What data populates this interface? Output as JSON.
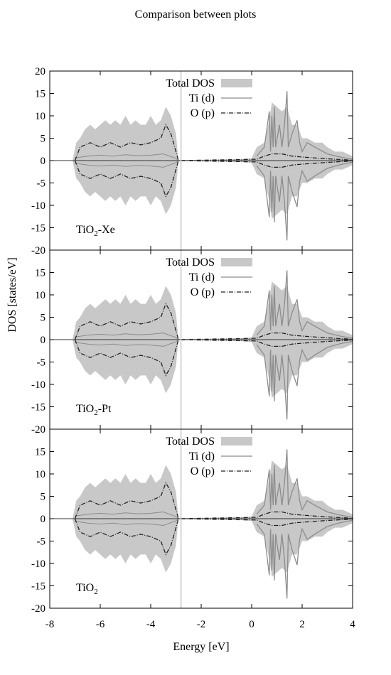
{
  "title": "Comparison between plots",
  "chart_data": {
    "type": "area",
    "xlabel": "Energy [eV]",
    "ylabel": "DOS [states/eV]",
    "xlim": [
      -8,
      4
    ],
    "xticks": [
      "-8",
      "-6",
      "-4",
      "-2",
      "0",
      "2",
      "4"
    ],
    "vertical_line_x": -2.8,
    "legend": [
      "Total DOS",
      "Ti (d)",
      "O (p)"
    ],
    "legend_placement": "top-center",
    "colors": {
      "total": "#c8c8c8",
      "ti": "#8c8c8c",
      "o": "#222222",
      "vline": "#c8c8c8"
    },
    "panels": [
      {
        "label": "TiO",
        "sub": "2",
        "suffix": "-Xe",
        "ylim": [
          -20,
          20
        ],
        "yticks": [
          "20",
          "15",
          "10",
          "5",
          "0",
          "-5",
          "-10",
          "-15",
          "-20"
        ]
      },
      {
        "label": "TiO",
        "sub": "2",
        "suffix": "-Pt",
        "ylim": [
          -20,
          20
        ],
        "yticks": [
          "15",
          "10",
          "5",
          "0",
          "-5",
          "-10",
          "-15",
          "-20"
        ]
      },
      {
        "label": "TiO",
        "sub": "2",
        "suffix": "",
        "ylim": [
          -20,
          20
        ],
        "yticks": [
          "15",
          "10",
          "5",
          "0",
          "-5",
          "-10",
          "-15",
          "-20"
        ]
      }
    ],
    "series_envelope": {
      "total_dos_upper": [
        [
          -7.1,
          0
        ],
        [
          -6.95,
          4
        ],
        [
          -6.8,
          5
        ],
        [
          -6.6,
          7
        ],
        [
          -6.4,
          8
        ],
        [
          -6.2,
          7
        ],
        [
          -6.0,
          8
        ],
        [
          -5.8,
          9
        ],
        [
          -5.6,
          8
        ],
        [
          -5.4,
          9
        ],
        [
          -5.2,
          8
        ],
        [
          -5.0,
          10
        ],
        [
          -4.8,
          8
        ],
        [
          -4.6,
          9
        ],
        [
          -4.4,
          8
        ],
        [
          -4.2,
          8
        ],
        [
          -4.0,
          10
        ],
        [
          -3.8,
          8
        ],
        [
          -3.6,
          9
        ],
        [
          -3.4,
          12
        ],
        [
          -3.2,
          10
        ],
        [
          -3.0,
          6
        ],
        [
          -2.9,
          0
        ],
        [
          -1.0,
          0
        ],
        [
          0.0,
          0.5
        ],
        [
          0.2,
          3
        ],
        [
          0.5,
          4
        ],
        [
          0.7,
          9
        ],
        [
          0.8,
          13
        ],
        [
          1.0,
          12
        ],
        [
          1.2,
          11
        ],
        [
          1.4,
          12
        ],
        [
          1.6,
          8
        ],
        [
          1.8,
          8
        ],
        [
          2.0,
          5
        ],
        [
          2.2,
          5
        ],
        [
          2.5,
          4
        ],
        [
          2.8,
          4
        ],
        [
          3.0,
          3
        ],
        [
          3.3,
          2
        ],
        [
          3.6,
          2
        ],
        [
          4.0,
          1
        ]
      ],
      "ti_d_upper": [
        [
          0.2,
          1
        ],
        [
          0.5,
          3
        ],
        [
          0.7,
          11
        ],
        [
          0.75,
          2
        ],
        [
          0.8,
          10
        ],
        [
          0.85,
          3
        ],
        [
          0.9,
          12
        ],
        [
          0.95,
          3
        ],
        [
          1.1,
          8
        ],
        [
          1.2,
          3
        ],
        [
          1.3,
          8
        ],
        [
          1.4,
          15.5
        ],
        [
          1.45,
          3
        ],
        [
          1.6,
          6
        ],
        [
          1.8,
          9
        ],
        [
          1.9,
          4
        ],
        [
          2.0,
          2
        ],
        [
          2.2,
          4
        ],
        [
          2.5,
          3
        ],
        [
          3.0,
          1.5
        ],
        [
          3.5,
          0.8
        ],
        [
          4.0,
          0.3
        ]
      ],
      "o_p_upper": [
        [
          -7.0,
          0
        ],
        [
          -6.8,
          3
        ],
        [
          -6.4,
          4
        ],
        [
          -6.0,
          3
        ],
        [
          -5.6,
          4
        ],
        [
          -5.2,
          3
        ],
        [
          -4.8,
          4
        ],
        [
          -4.4,
          3.5
        ],
        [
          -4.0,
          4
        ],
        [
          -3.6,
          5
        ],
        [
          -3.4,
          8
        ],
        [
          -3.2,
          6
        ],
        [
          -3.0,
          2
        ],
        [
          -2.9,
          0
        ],
        [
          0.2,
          0.3
        ],
        [
          0.5,
          1
        ],
        [
          0.8,
          1.5
        ],
        [
          1.2,
          1.5
        ],
        [
          1.6,
          1
        ],
        [
          2.0,
          0.8
        ],
        [
          3.0,
          0.4
        ],
        [
          4.0,
          0.1
        ]
      ]
    }
  }
}
